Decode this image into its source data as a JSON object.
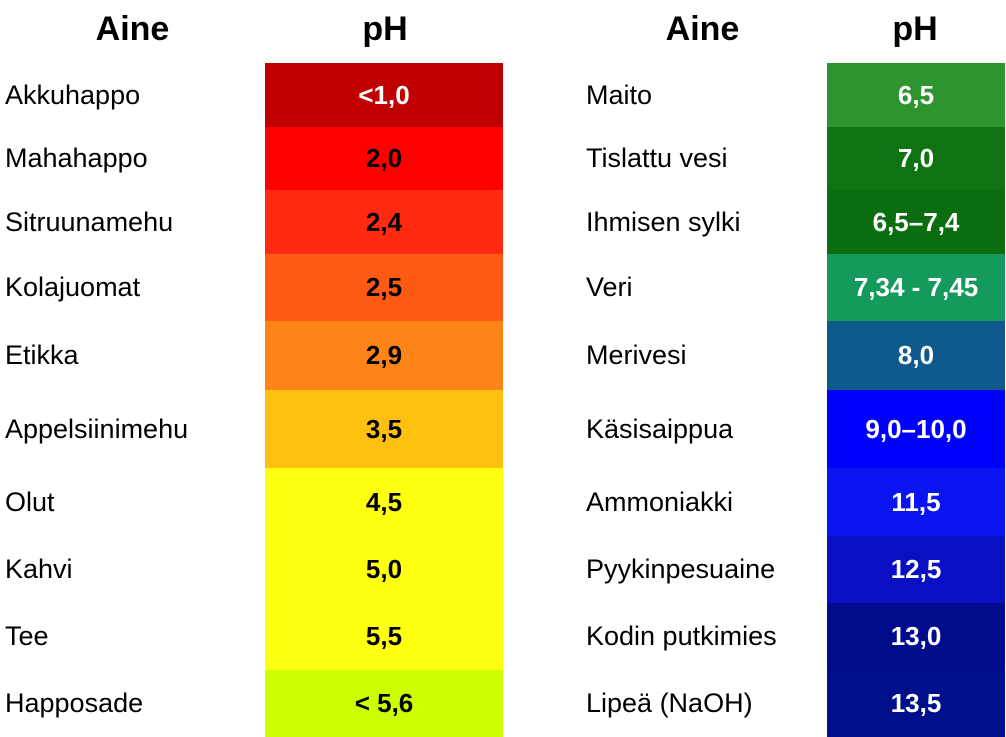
{
  "left_table": {
    "header_substance": "Aine",
    "header_ph": "pH",
    "rows": [
      {
        "substance": "Akkuhappo",
        "ph": "<1,0",
        "color": "#c00000",
        "text_color": "#ffffff"
      },
      {
        "substance": "Mahahappo",
        "ph": "2,0",
        "color": "#ff0000",
        "text_color": "#000000"
      },
      {
        "substance": "Sitruunamehu",
        "ph": "2,4",
        "color": "#ff2a10",
        "text_color": "#000000"
      },
      {
        "substance": "Kolajuomat",
        "ph": "2,5",
        "color": "#ff5a14",
        "text_color": "#000000"
      },
      {
        "substance": "Etikka",
        "ph": "2,9",
        "color": "#ff8418",
        "text_color": "#000000"
      },
      {
        "substance": "Appelsiinimehu",
        "ph": "3,5",
        "color": "#ffc010",
        "text_color": "#000000"
      },
      {
        "substance": "Olut",
        "ph": "4,5",
        "color": "#ffff10",
        "text_color": "#000000"
      },
      {
        "substance": "Kahvi",
        "ph": "5,0",
        "color": "#ffff10",
        "text_color": "#000000"
      },
      {
        "substance": "Tee",
        "ph": "5,5",
        "color": "#ffff10",
        "text_color": "#000000"
      },
      {
        "substance": "Happosade",
        "ph": "< 5,6",
        "color": "#ccff00",
        "text_color": "#000000"
      }
    ]
  },
  "right_table": {
    "header_substance": "Aine",
    "header_ph": "pH",
    "rows": [
      {
        "substance": "Maito",
        "ph": "6,5",
        "color": "#2e9430",
        "text_color": "#ffffff"
      },
      {
        "substance": "Tislattu vesi",
        "ph": "7,0",
        "color": "#0e7310",
        "text_color": "#ffffff"
      },
      {
        "substance": "Ihmisen sylki",
        "ph": "6,5–7,4",
        "color": "#0a6e10",
        "text_color": "#ffffff"
      },
      {
        "substance": "Veri",
        "ph": "7,34 - 7,45",
        "color": "#159a5e",
        "text_color": "#ffffff"
      },
      {
        "substance": "Merivesi",
        "ph": "8,0",
        "color": "#0f5a8c",
        "text_color": "#ffffff"
      },
      {
        "substance": "Käsisaippua",
        "ph": "9,0–10,0",
        "color": "#0000ff",
        "text_color": "#ffffff"
      },
      {
        "substance": "Ammoniakki",
        "ph": "11,5",
        "color": "#0a14f0",
        "text_color": "#ffffff"
      },
      {
        "substance": "Pyykinpesuaine",
        "ph": "12,5",
        "color": "#0a0fc4",
        "text_color": "#ffffff"
      },
      {
        "substance": "Kodin putkimies",
        "ph": "13,0",
        "color": "#000c8c",
        "text_color": "#ffffff"
      },
      {
        "substance": "Lipeä (NaOH)",
        "ph": "13,5",
        "color": "#00108c",
        "text_color": "#ffffff"
      }
    ]
  }
}
